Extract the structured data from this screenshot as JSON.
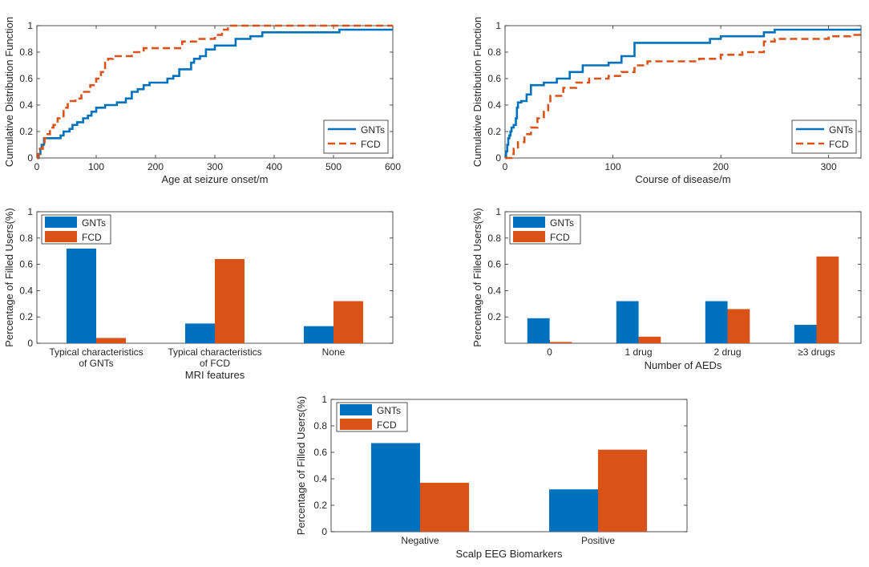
{
  "colors": {
    "gnt": "#0072BD",
    "fcd": "#D95319",
    "axis": "#262626",
    "bg": "#ffffff"
  },
  "chart_data": [
    {
      "id": "age-cdf",
      "type": "line",
      "xlabel": "Age at seizure onset/m",
      "ylabel": "Cumulative Distribution Function",
      "xlim": [
        0,
        600
      ],
      "ylim": [
        0,
        1
      ],
      "xticks": [
        0,
        100,
        200,
        300,
        400,
        500,
        600
      ],
      "yticks": [
        0,
        0.2,
        0.4,
        0.6,
        0.8,
        1
      ],
      "ytick_labels": [
        "0",
        "0.2",
        "0.4",
        "0.6",
        "0.8",
        "1"
      ],
      "legend_position": "bottom-right",
      "series": [
        {
          "name": "GNTs",
          "style": "solid",
          "points": [
            [
              0,
              0
            ],
            [
              3,
              0
            ],
            [
              3,
              0.03
            ],
            [
              6,
              0.03
            ],
            [
              6,
              0.07
            ],
            [
              8,
              0.07
            ],
            [
              8,
              0.1
            ],
            [
              12,
              0.1
            ],
            [
              12,
              0.15
            ],
            [
              40,
              0.15
            ],
            [
              40,
              0.17
            ],
            [
              45,
              0.17
            ],
            [
              45,
              0.2
            ],
            [
              55,
              0.2
            ],
            [
              55,
              0.22
            ],
            [
              60,
              0.22
            ],
            [
              60,
              0.25
            ],
            [
              68,
              0.25
            ],
            [
              68,
              0.27
            ],
            [
              78,
              0.27
            ],
            [
              78,
              0.3
            ],
            [
              86,
              0.3
            ],
            [
              86,
              0.32
            ],
            [
              92,
              0.32
            ],
            [
              92,
              0.35
            ],
            [
              100,
              0.35
            ],
            [
              100,
              0.38
            ],
            [
              115,
              0.38
            ],
            [
              115,
              0.4
            ],
            [
              135,
              0.4
            ],
            [
              135,
              0.42
            ],
            [
              150,
              0.42
            ],
            [
              150,
              0.45
            ],
            [
              160,
              0.45
            ],
            [
              160,
              0.5
            ],
            [
              170,
              0.5
            ],
            [
              170,
              0.52
            ],
            [
              180,
              0.52
            ],
            [
              180,
              0.55
            ],
            [
              190,
              0.55
            ],
            [
              190,
              0.57
            ],
            [
              220,
              0.57
            ],
            [
              220,
              0.6
            ],
            [
              230,
              0.6
            ],
            [
              230,
              0.62
            ],
            [
              240,
              0.62
            ],
            [
              240,
              0.67
            ],
            [
              260,
              0.67
            ],
            [
              260,
              0.72
            ],
            [
              265,
              0.72
            ],
            [
              265,
              0.75
            ],
            [
              275,
              0.75
            ],
            [
              275,
              0.77
            ],
            [
              285,
              0.77
            ],
            [
              285,
              0.82
            ],
            [
              300,
              0.82
            ],
            [
              300,
              0.85
            ],
            [
              335,
              0.85
            ],
            [
              335,
              0.9
            ],
            [
              360,
              0.9
            ],
            [
              360,
              0.92
            ],
            [
              380,
              0.92
            ],
            [
              380,
              0.95
            ],
            [
              510,
              0.95
            ],
            [
              510,
              0.97
            ],
            [
              600,
              0.97
            ]
          ]
        },
        {
          "name": "FCD",
          "style": "dashed",
          "points": [
            [
              0,
              0
            ],
            [
              2,
              0
            ],
            [
              2,
              0.03
            ],
            [
              5,
              0.03
            ],
            [
              5,
              0.07
            ],
            [
              10,
              0.07
            ],
            [
              10,
              0.1
            ],
            [
              13,
              0.1
            ],
            [
              13,
              0.15
            ],
            [
              18,
              0.15
            ],
            [
              18,
              0.18
            ],
            [
              22,
              0.18
            ],
            [
              22,
              0.23
            ],
            [
              28,
              0.23
            ],
            [
              28,
              0.25
            ],
            [
              35,
              0.25
            ],
            [
              35,
              0.3
            ],
            [
              45,
              0.3
            ],
            [
              45,
              0.38
            ],
            [
              52,
              0.38
            ],
            [
              52,
              0.43
            ],
            [
              65,
              0.43
            ],
            [
              65,
              0.45
            ],
            [
              75,
              0.45
            ],
            [
              75,
              0.5
            ],
            [
              90,
              0.5
            ],
            [
              90,
              0.55
            ],
            [
              100,
              0.55
            ],
            [
              100,
              0.6
            ],
            [
              108,
              0.6
            ],
            [
              108,
              0.65
            ],
            [
              115,
              0.65
            ],
            [
              115,
              0.72
            ],
            [
              120,
              0.72
            ],
            [
              120,
              0.75
            ],
            [
              128,
              0.75
            ],
            [
              128,
              0.77
            ],
            [
              160,
              0.77
            ],
            [
              160,
              0.8
            ],
            [
              180,
              0.8
            ],
            [
              180,
              0.83
            ],
            [
              245,
              0.83
            ],
            [
              245,
              0.88
            ],
            [
              270,
              0.88
            ],
            [
              270,
              0.9
            ],
            [
              300,
              0.9
            ],
            [
              300,
              0.93
            ],
            [
              312,
              0.93
            ],
            [
              312,
              0.97
            ],
            [
              322,
              0.97
            ],
            [
              322,
              1
            ],
            [
              600,
              1
            ]
          ]
        }
      ]
    },
    {
      "id": "course-cdf",
      "type": "line",
      "xlabel": "Course of disease/m",
      "ylabel": "Cumulative Distribution Function",
      "xlim": [
        0,
        330
      ],
      "ylim": [
        0,
        1
      ],
      "xticks": [
        0,
        100,
        200,
        300
      ],
      "yticks": [
        0,
        0.2,
        0.4,
        0.6,
        0.8,
        1
      ],
      "ytick_labels": [
        "0",
        "0.2",
        "0.4",
        "0.6",
        "0.8",
        "1"
      ],
      "legend_position": "bottom-right",
      "series": [
        {
          "name": "GNTs",
          "style": "solid",
          "points": [
            [
              0,
              0
            ],
            [
              1,
              0
            ],
            [
              1,
              0.05
            ],
            [
              2,
              0.05
            ],
            [
              2,
              0.1
            ],
            [
              3,
              0.1
            ],
            [
              3,
              0.15
            ],
            [
              4,
              0.15
            ],
            [
              4,
              0.17
            ],
            [
              5,
              0.17
            ],
            [
              5,
              0.2
            ],
            [
              6,
              0.2
            ],
            [
              6,
              0.23
            ],
            [
              8,
              0.23
            ],
            [
              8,
              0.25
            ],
            [
              10,
              0.25
            ],
            [
              10,
              0.3
            ],
            [
              11,
              0.3
            ],
            [
              11,
              0.38
            ],
            [
              12,
              0.38
            ],
            [
              12,
              0.42
            ],
            [
              15,
              0.42
            ],
            [
              15,
              0.43
            ],
            [
              20,
              0.43
            ],
            [
              20,
              0.48
            ],
            [
              24,
              0.48
            ],
            [
              24,
              0.55
            ],
            [
              36,
              0.55
            ],
            [
              36,
              0.57
            ],
            [
              48,
              0.57
            ],
            [
              48,
              0.6
            ],
            [
              60,
              0.6
            ],
            [
              60,
              0.65
            ],
            [
              72,
              0.65
            ],
            [
              72,
              0.7
            ],
            [
              96,
              0.7
            ],
            [
              96,
              0.72
            ],
            [
              108,
              0.72
            ],
            [
              108,
              0.77
            ],
            [
              120,
              0.77
            ],
            [
              120,
              0.87
            ],
            [
              190,
              0.87
            ],
            [
              190,
              0.9
            ],
            [
              200,
              0.9
            ],
            [
              200,
              0.92
            ],
            [
              240,
              0.92
            ],
            [
              240,
              0.95
            ],
            [
              250,
              0.95
            ],
            [
              250,
              0.97
            ],
            [
              330,
              0.97
            ]
          ]
        },
        {
          "name": "FCD",
          "style": "dashed",
          "points": [
            [
              0,
              0
            ],
            [
              6,
              0
            ],
            [
              6,
              0.03
            ],
            [
              8,
              0.03
            ],
            [
              8,
              0.07
            ],
            [
              12,
              0.07
            ],
            [
              12,
              0.12
            ],
            [
              18,
              0.12
            ],
            [
              18,
              0.18
            ],
            [
              24,
              0.18
            ],
            [
              24,
              0.23
            ],
            [
              30,
              0.23
            ],
            [
              30,
              0.3
            ],
            [
              36,
              0.3
            ],
            [
              36,
              0.35
            ],
            [
              40,
              0.35
            ],
            [
              40,
              0.4
            ],
            [
              42,
              0.4
            ],
            [
              42,
              0.47
            ],
            [
              54,
              0.47
            ],
            [
              54,
              0.53
            ],
            [
              66,
              0.53
            ],
            [
              66,
              0.57
            ],
            [
              78,
              0.57
            ],
            [
              78,
              0.6
            ],
            [
              96,
              0.6
            ],
            [
              96,
              0.62
            ],
            [
              108,
              0.62
            ],
            [
              108,
              0.65
            ],
            [
              120,
              0.65
            ],
            [
              120,
              0.7
            ],
            [
              132,
              0.7
            ],
            [
              132,
              0.73
            ],
            [
              180,
              0.73
            ],
            [
              180,
              0.75
            ],
            [
              200,
              0.75
            ],
            [
              200,
              0.78
            ],
            [
              220,
              0.78
            ],
            [
              220,
              0.8
            ],
            [
              240,
              0.8
            ],
            [
              240,
              0.88
            ],
            [
              250,
              0.88
            ],
            [
              250,
              0.9
            ],
            [
              300,
              0.9
            ],
            [
              300,
              0.92
            ],
            [
              320,
              0.92
            ],
            [
              320,
              0.93
            ],
            [
              330,
              0.93
            ]
          ]
        }
      ]
    },
    {
      "id": "mri-bar",
      "type": "bar",
      "xlabel": "MRI features",
      "ylabel": "Percentage of Filled Users(%)",
      "ylim": [
        0,
        1
      ],
      "yticks": [
        0,
        0.2,
        0.4,
        0.6,
        0.8,
        1
      ],
      "ytick_labels": [
        "0",
        "0.2",
        "0.4",
        "0.6",
        "0.8",
        "1"
      ],
      "legend_position": "top-left",
      "categories": [
        [
          "Typical characteristics",
          "of GNTs"
        ],
        [
          "Typical characteristics",
          "of FCD"
        ],
        [
          "None"
        ]
      ],
      "series": [
        {
          "name": "GNTs",
          "values": [
            0.72,
            0.15,
            0.13
          ]
        },
        {
          "name": "FCD",
          "values": [
            0.04,
            0.64,
            0.32
          ]
        }
      ]
    },
    {
      "id": "aed-bar",
      "type": "bar",
      "xlabel": "Number of AEDs",
      "ylabel": "Percentage of Filled Users(%)",
      "ylim": [
        0,
        1
      ],
      "yticks": [
        0.2,
        0.4,
        0.6,
        0.8,
        1
      ],
      "ytick_labels": [
        "0.2",
        "0.4",
        "0.6",
        "0.8",
        "1"
      ],
      "legend_position": "top-left",
      "categories": [
        [
          "0"
        ],
        [
          "1 drug"
        ],
        [
          "2 drug"
        ],
        [
          "≥3 drugs"
        ]
      ],
      "series": [
        {
          "name": "GNTs",
          "values": [
            0.19,
            0.32,
            0.32,
            0.14
          ]
        },
        {
          "name": "FCD",
          "values": [
            0.01,
            0.05,
            0.26,
            0.66
          ]
        }
      ]
    },
    {
      "id": "eeg-bar",
      "type": "bar",
      "xlabel": "Scalp EEG Biomarkers",
      "ylabel": "Percentage of Filled Users(%)",
      "ylim": [
        0,
        1
      ],
      "yticks": [
        0,
        0.2,
        0.4,
        0.6,
        0.8,
        1
      ],
      "ytick_labels": [
        "0",
        "0.2",
        "0.4",
        "0.6",
        "0.8",
        "1"
      ],
      "legend_position": "top-left",
      "categories": [
        [
          "Negative"
        ],
        [
          "Positive"
        ]
      ],
      "series": [
        {
          "name": "GNTs",
          "values": [
            0.67,
            0.32
          ]
        },
        {
          "name": "FCD",
          "values": [
            0.37,
            0.62
          ]
        }
      ]
    }
  ]
}
